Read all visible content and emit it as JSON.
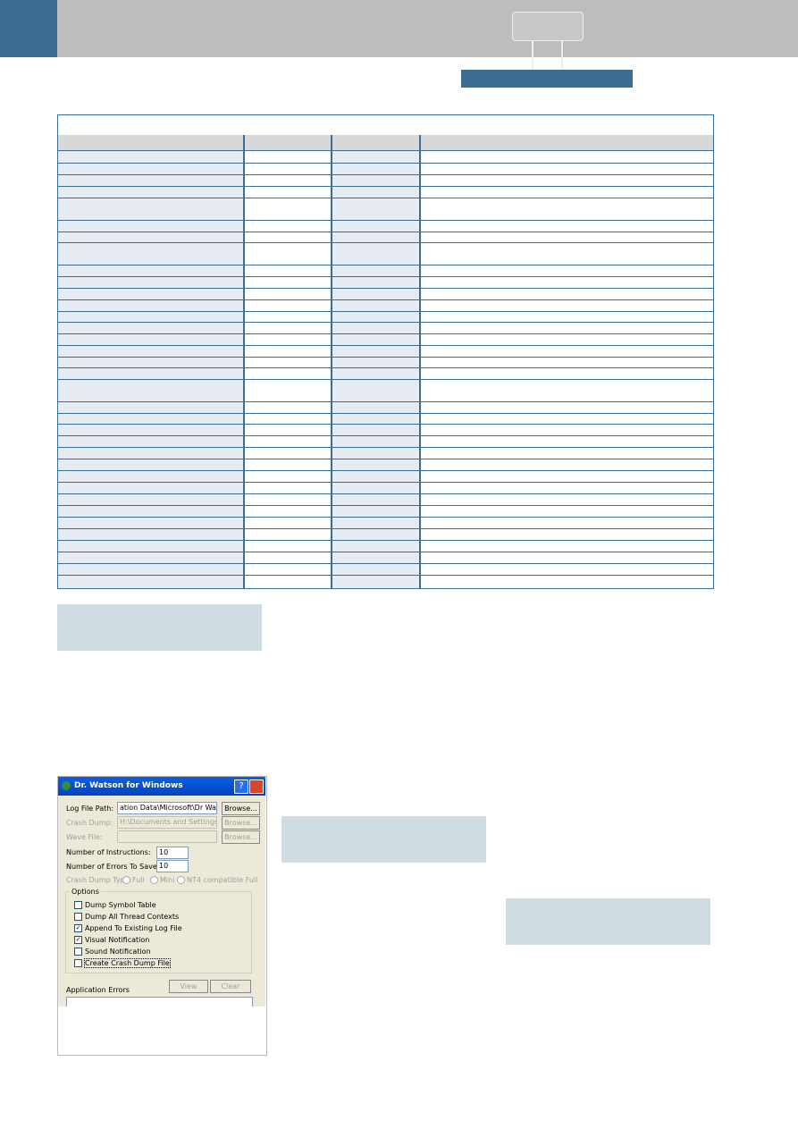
{
  "dialog": {
    "title": "Dr. Watson for Windows",
    "help": "?",
    "fields": [
      {
        "label": "Log File Path:",
        "value": "ation Data\\Microsoft\\Dr Watson",
        "button": "Browse..."
      },
      {
        "label": "Crash Dump:",
        "value": "H:\\Documents and Settings\\All",
        "button": "Browse..."
      },
      {
        "label": "Wave File:",
        "value": "",
        "button": "Browse..."
      }
    ],
    "instructions": {
      "label": "Number of Instructions:",
      "value": "10"
    },
    "errors": {
      "label": "Number of Errors To Save:",
      "value": "10"
    },
    "dump_type": {
      "label": "Crash Dump Type:",
      "options": [
        "Full",
        "Mini",
        "NT4 compatible Full"
      ]
    },
    "options": {
      "title": "Options",
      "items": [
        "Dump Symbol Table",
        "Dump All Thread Contexts",
        "Append To Existing Log File",
        "Visual Notification",
        "Sound Notification",
        "Create Crash Dump File"
      ]
    },
    "app_errors": "Application Errors",
    "view": "View",
    "clear": "Clear"
  }
}
